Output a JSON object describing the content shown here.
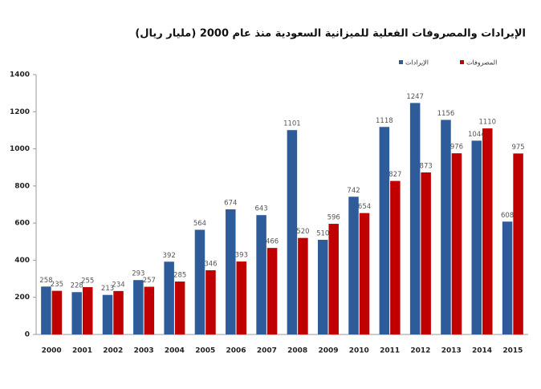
{
  "chart_data": {
    "type": "bar",
    "title": "الإيرادات والمصروفات الفعلية للميزانية السعودية منذ عام 2000 (مليار ريال)",
    "categories": [
      "2000",
      "2001",
      "2002",
      "2003",
      "2004",
      "2005",
      "2006",
      "2007",
      "2008",
      "2009",
      "2010",
      "2011",
      "2012",
      "2013",
      "2014",
      "2015"
    ],
    "series": [
      {
        "name": "الإيرادات",
        "color": "#2e5c9a",
        "values": [
          258,
          228,
          213,
          293,
          392,
          564,
          674,
          643,
          1101,
          510,
          742,
          1118,
          1247,
          1156,
          1044,
          608
        ]
      },
      {
        "name": "المصروفات",
        "color": "#c00000",
        "values": [
          235,
          255,
          234,
          257,
          285,
          346,
          393,
          466,
          520,
          596,
          654,
          827,
          873,
          976,
          1110,
          975
        ]
      }
    ],
    "ylim": [
      0,
      1400
    ],
    "yticks": [
      0,
      200,
      400,
      600,
      800,
      1000,
      1200,
      1400
    ],
    "grid": false
  }
}
